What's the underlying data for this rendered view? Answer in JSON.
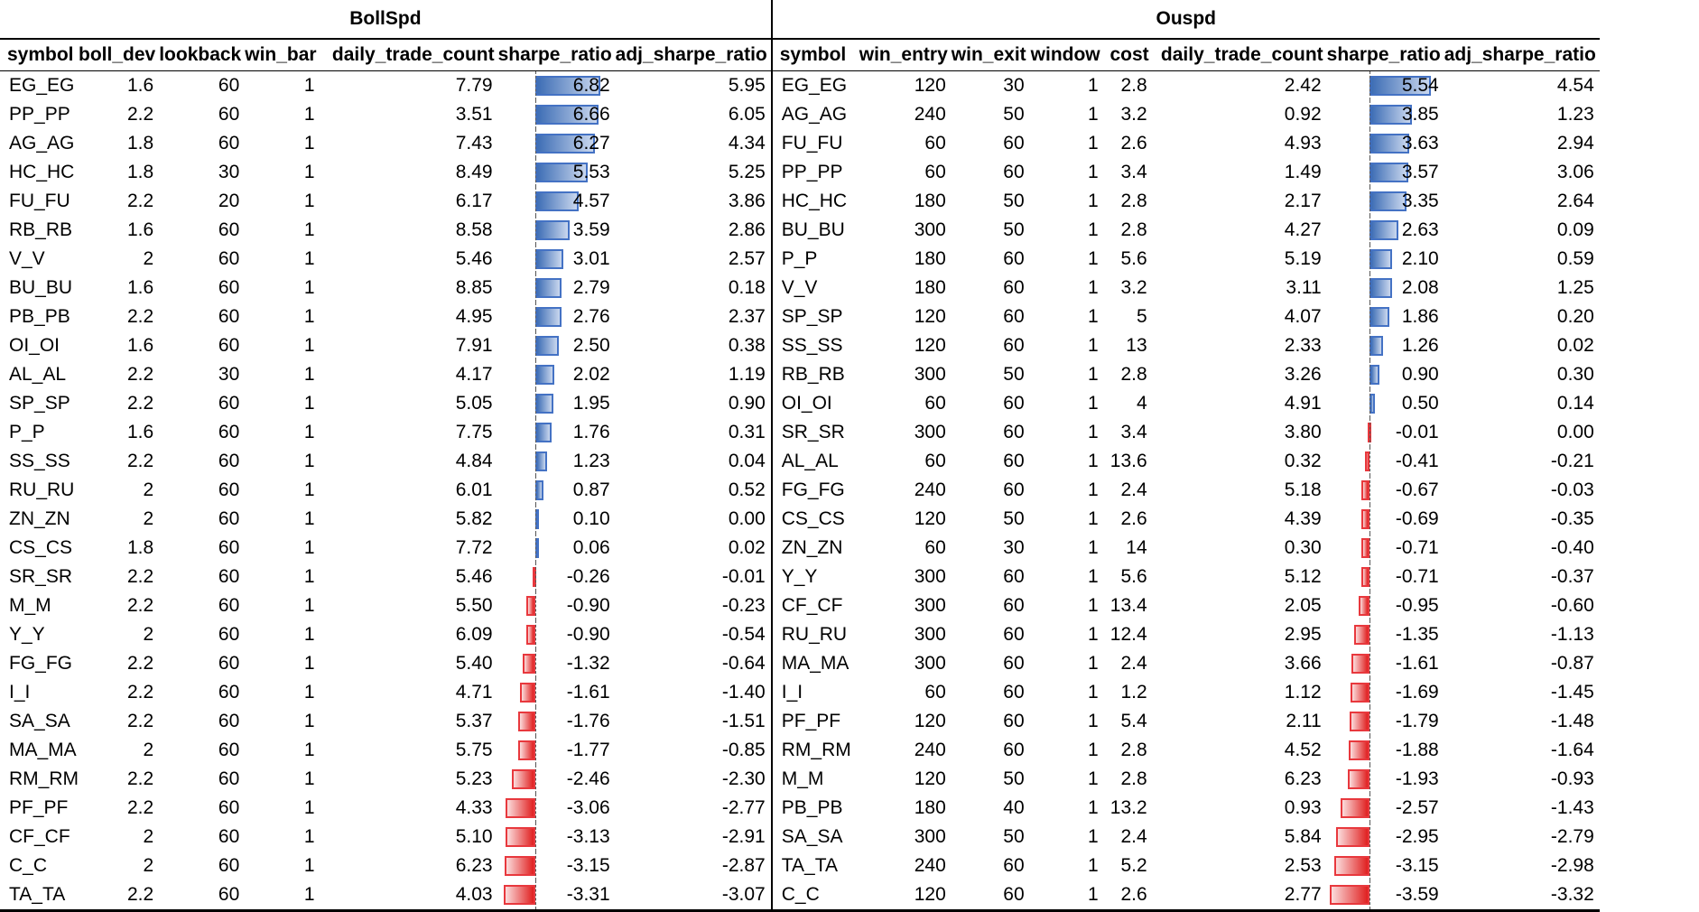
{
  "left": {
    "title": "BollSpd",
    "headers": [
      "symbol",
      "boll_dev",
      "lookback",
      "win_bar",
      "daily_trade_count",
      "sharpe_ratio",
      "adj_sharpe_ratio"
    ],
    "rows": [
      [
        "EG_EG",
        "1.6",
        "60",
        "1",
        "7.79",
        "6.82",
        "5.95"
      ],
      [
        "PP_PP",
        "2.2",
        "60",
        "1",
        "3.51",
        "6.66",
        "6.05"
      ],
      [
        "AG_AG",
        "1.8",
        "60",
        "1",
        "7.43",
        "6.27",
        "4.34"
      ],
      [
        "HC_HC",
        "1.8",
        "30",
        "1",
        "8.49",
        "5.53",
        "5.25"
      ],
      [
        "FU_FU",
        "2.2",
        "20",
        "1",
        "6.17",
        "4.57",
        "3.86"
      ],
      [
        "RB_RB",
        "1.6",
        "60",
        "1",
        "8.58",
        "3.59",
        "2.86"
      ],
      [
        "V_V",
        "2",
        "60",
        "1",
        "5.46",
        "3.01",
        "2.57"
      ],
      [
        "BU_BU",
        "1.6",
        "60",
        "1",
        "8.85",
        "2.79",
        "0.18"
      ],
      [
        "PB_PB",
        "2.2",
        "60",
        "1",
        "4.95",
        "2.76",
        "2.37"
      ],
      [
        "OI_OI",
        "1.6",
        "60",
        "1",
        "7.91",
        "2.50",
        "0.38"
      ],
      [
        "AL_AL",
        "2.2",
        "30",
        "1",
        "4.17",
        "2.02",
        "1.19"
      ],
      [
        "SP_SP",
        "2.2",
        "60",
        "1",
        "5.05",
        "1.95",
        "0.90"
      ],
      [
        "P_P",
        "1.6",
        "60",
        "1",
        "7.75",
        "1.76",
        "0.31"
      ],
      [
        "SS_SS",
        "2.2",
        "60",
        "1",
        "4.84",
        "1.23",
        "0.04"
      ],
      [
        "RU_RU",
        "2",
        "60",
        "1",
        "6.01",
        "0.87",
        "0.52"
      ],
      [
        "ZN_ZN",
        "2",
        "60",
        "1",
        "5.82",
        "0.10",
        "0.00"
      ],
      [
        "CS_CS",
        "1.8",
        "60",
        "1",
        "7.72",
        "0.06",
        "0.02"
      ],
      [
        "SR_SR",
        "2.2",
        "60",
        "1",
        "5.46",
        "-0.26",
        "-0.01"
      ],
      [
        "M_M",
        "2.2",
        "60",
        "1",
        "5.50",
        "-0.90",
        "-0.23"
      ],
      [
        "Y_Y",
        "2",
        "60",
        "1",
        "6.09",
        "-0.90",
        "-0.54"
      ],
      [
        "FG_FG",
        "2.2",
        "60",
        "1",
        "5.40",
        "-1.32",
        "-0.64"
      ],
      [
        "I_I",
        "2.2",
        "60",
        "1",
        "4.71",
        "-1.61",
        "-1.40"
      ],
      [
        "SA_SA",
        "2.2",
        "60",
        "1",
        "5.37",
        "-1.76",
        "-1.51"
      ],
      [
        "MA_MA",
        "2",
        "60",
        "1",
        "5.75",
        "-1.77",
        "-0.85"
      ],
      [
        "RM_RM",
        "2.2",
        "60",
        "1",
        "5.23",
        "-2.46",
        "-2.30"
      ],
      [
        "PF_PF",
        "2.2",
        "60",
        "1",
        "4.33",
        "-3.06",
        "-2.77"
      ],
      [
        "CF_CF",
        "2",
        "60",
        "1",
        "5.10",
        "-3.13",
        "-2.91"
      ],
      [
        "C_C",
        "2",
        "60",
        "1",
        "6.23",
        "-3.15",
        "-2.87"
      ],
      [
        "TA_TA",
        "2.2",
        "60",
        "1",
        "4.03",
        "-3.31",
        "-3.07"
      ]
    ]
  },
  "right": {
    "title": "Ouspd",
    "headers": [
      "symbol",
      "win_entry",
      "win_exit",
      "window",
      "cost",
      "daily_trade_count",
      "sharpe_ratio",
      "adj_sharpe_ratio"
    ],
    "rows": [
      [
        "EG_EG",
        "120",
        "30",
        "1",
        "2.8",
        "2.42",
        "5.54",
        "4.54"
      ],
      [
        "AG_AG",
        "240",
        "50",
        "1",
        "3.2",
        "0.92",
        "3.85",
        "1.23"
      ],
      [
        "FU_FU",
        "60",
        "60",
        "1",
        "2.6",
        "4.93",
        "3.63",
        "2.94"
      ],
      [
        "PP_PP",
        "60",
        "60",
        "1",
        "3.4",
        "1.49",
        "3.57",
        "3.06"
      ],
      [
        "HC_HC",
        "180",
        "50",
        "1",
        "2.8",
        "2.17",
        "3.35",
        "2.64"
      ],
      [
        "BU_BU",
        "300",
        "50",
        "1",
        "2.8",
        "4.27",
        "2.63",
        "0.09"
      ],
      [
        "P_P",
        "180",
        "60",
        "1",
        "5.6",
        "5.19",
        "2.10",
        "0.59"
      ],
      [
        "V_V",
        "180",
        "60",
        "1",
        "3.2",
        "3.11",
        "2.08",
        "1.25"
      ],
      [
        "SP_SP",
        "120",
        "60",
        "1",
        "5",
        "4.07",
        "1.86",
        "0.20"
      ],
      [
        "SS_SS",
        "120",
        "60",
        "1",
        "13",
        "2.33",
        "1.26",
        "0.02"
      ],
      [
        "RB_RB",
        "300",
        "50",
        "1",
        "2.8",
        "3.26",
        "0.90",
        "0.30"
      ],
      [
        "OI_OI",
        "60",
        "60",
        "1",
        "4",
        "4.91",
        "0.50",
        "0.14"
      ],
      [
        "SR_SR",
        "300",
        "60",
        "1",
        "3.4",
        "3.80",
        "-0.01",
        "0.00"
      ],
      [
        "AL_AL",
        "60",
        "60",
        "1",
        "13.6",
        "0.32",
        "-0.41",
        "-0.21"
      ],
      [
        "FG_FG",
        "240",
        "60",
        "1",
        "2.4",
        "5.18",
        "-0.67",
        "-0.03"
      ],
      [
        "CS_CS",
        "120",
        "50",
        "1",
        "2.6",
        "4.39",
        "-0.69",
        "-0.35"
      ],
      [
        "ZN_ZN",
        "60",
        "30",
        "1",
        "14",
        "0.30",
        "-0.71",
        "-0.40"
      ],
      [
        "Y_Y",
        "300",
        "60",
        "1",
        "5.6",
        "5.12",
        "-0.71",
        "-0.37"
      ],
      [
        "CF_CF",
        "300",
        "60",
        "1",
        "13.4",
        "2.05",
        "-0.95",
        "-0.60"
      ],
      [
        "RU_RU",
        "300",
        "60",
        "1",
        "12.4",
        "2.95",
        "-1.35",
        "-1.13"
      ],
      [
        "MA_MA",
        "300",
        "60",
        "1",
        "2.4",
        "3.66",
        "-1.61",
        "-0.87"
      ],
      [
        "I_I",
        "60",
        "60",
        "1",
        "1.2",
        "1.12",
        "-1.69",
        "-1.45"
      ],
      [
        "PF_PF",
        "120",
        "60",
        "1",
        "5.4",
        "2.11",
        "-1.79",
        "-1.48"
      ],
      [
        "RM_RM",
        "240",
        "60",
        "1",
        "2.8",
        "4.52",
        "-1.88",
        "-1.64"
      ],
      [
        "M_M",
        "120",
        "50",
        "1",
        "2.8",
        "6.23",
        "-1.93",
        "-0.93"
      ],
      [
        "PB_PB",
        "180",
        "40",
        "1",
        "13.2",
        "0.93",
        "-2.57",
        "-1.43"
      ],
      [
        "SA_SA",
        "300",
        "50",
        "1",
        "2.4",
        "5.84",
        "-2.95",
        "-2.79"
      ],
      [
        "TA_TA",
        "240",
        "60",
        "1",
        "5.2",
        "2.53",
        "-3.15",
        "-2.98"
      ],
      [
        "C_C",
        "120",
        "60",
        "1",
        "2.6",
        "2.77",
        "-3.59",
        "-3.32"
      ]
    ]
  },
  "colors": {
    "positive_bar": "#4472c4",
    "negative_bar": "#e8383d"
  }
}
